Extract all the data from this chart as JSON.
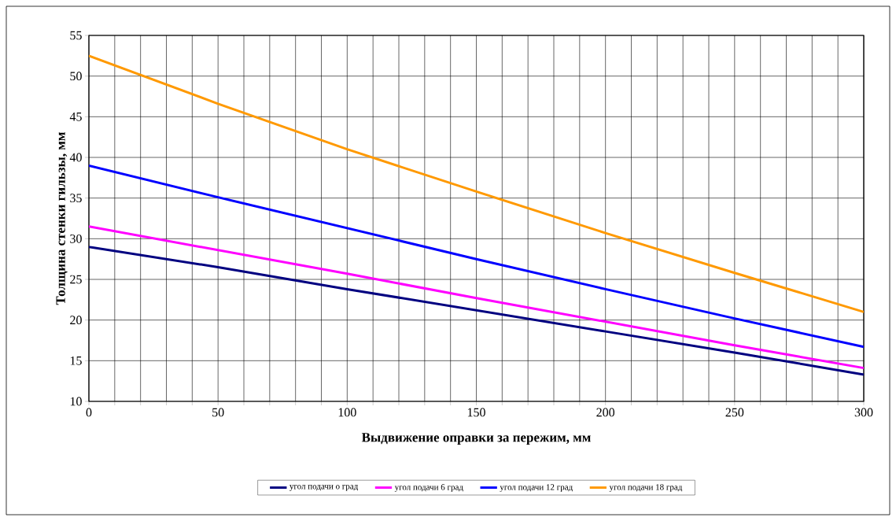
{
  "chart_data": {
    "type": "line",
    "xlabel": "Выдвижение оправки за пережим, мм",
    "ylabel": "Толщина стенки гильзы, мм",
    "x": [
      0,
      50,
      100,
      150,
      200,
      250,
      300
    ],
    "series": [
      {
        "name": "угол подачи о град",
        "color": "#000080",
        "values": [
          29,
          26.5,
          23.8,
          21.2,
          18.6,
          16,
          13.3
        ]
      },
      {
        "name": "угол подачи 6 град",
        "color": "#ff00ff",
        "values": [
          31.5,
          28.6,
          25.7,
          22.7,
          19.8,
          16.9,
          14.1
        ]
      },
      {
        "name": "угол подачи 12 град",
        "color": "#0000ff",
        "values": [
          39,
          35.1,
          31.3,
          27.5,
          23.8,
          20.2,
          16.7
        ]
      },
      {
        "name": "угол подачи 18 град",
        "color": "#ff9900",
        "values": [
          52.5,
          46.6,
          41,
          35.8,
          30.7,
          25.8,
          21
        ]
      }
    ],
    "xlim": [
      0,
      300
    ],
    "ylim": [
      10,
      55
    ],
    "xticks": [
      0,
      {
        "value": 10,
        "label": null
      },
      {
        "value": 20,
        "label": null
      },
      {
        "value": 30,
        "label": null
      },
      {
        "value": 40,
        "label": null
      },
      50,
      {
        "value": 60,
        "label": null
      },
      {
        "value": 70,
        "label": null
      },
      {
        "value": 80,
        "label": null
      },
      {
        "value": 90,
        "label": null
      },
      100,
      {
        "value": 110,
        "label": null
      },
      {
        "value": 120,
        "label": null
      },
      {
        "value": 130,
        "label": null
      },
      {
        "value": 140,
        "label": null
      },
      150,
      {
        "value": 160,
        "label": null
      },
      {
        "value": 170,
        "label": null
      },
      {
        "value": 180,
        "label": null
      },
      {
        "value": 190,
        "label": null
      },
      200,
      {
        "value": 210,
        "label": null
      },
      {
        "value": 220,
        "label": null
      },
      {
        "value": 230,
        "label": null
      },
      {
        "value": 240,
        "label": null
      },
      250,
      {
        "value": 260,
        "label": null
      },
      {
        "value": 270,
        "label": null
      },
      {
        "value": 280,
        "label": null
      },
      {
        "value": 290,
        "label": null
      },
      300
    ],
    "yticks": [
      10,
      15,
      20,
      25,
      30,
      35,
      40,
      45,
      50,
      55
    ],
    "grid": true,
    "legend": "bottom",
    "marker": "none",
    "line_style": "solid"
  }
}
